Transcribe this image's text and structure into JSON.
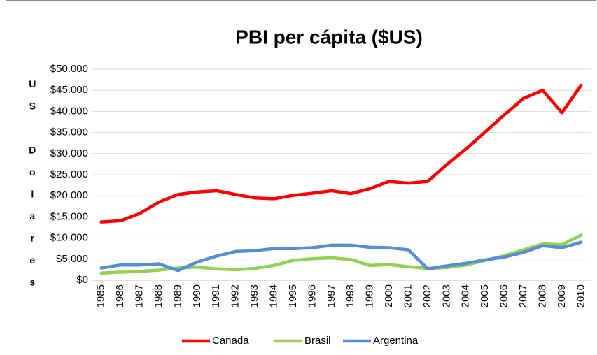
{
  "chart_data": {
    "type": "line",
    "title": "PBI per cápita ($US)",
    "ylabel": "US Dolares",
    "categories": [
      "1985",
      "1986",
      "1987",
      "1988",
      "1989",
      "1990",
      "1991",
      "1992",
      "1993",
      "1994",
      "1995",
      "1996",
      "1997",
      "1998",
      "1999",
      "2000",
      "2001",
      "2002",
      "2003",
      "2004",
      "2005",
      "2006",
      "2007",
      "2008",
      "2009",
      "2010"
    ],
    "series": [
      {
        "name": "Canada",
        "color": "#ff0000",
        "values": [
          13800,
          14100,
          15800,
          18500,
          20300,
          20900,
          21200,
          20300,
          19500,
          19300,
          20100,
          20600,
          21200,
          20500,
          21700,
          23400,
          23000,
          23400,
          27400,
          31100,
          35100,
          39200,
          43100,
          45000,
          39700,
          46200
        ]
      },
      {
        "name": "Brasil",
        "color": "#92d050",
        "values": [
          1700,
          1900,
          2100,
          2400,
          2900,
          3100,
          2700,
          2500,
          2800,
          3500,
          4700,
          5100,
          5300,
          4900,
          3500,
          3700,
          3200,
          2800,
          3000,
          3600,
          4700,
          5800,
          7200,
          8600,
          8400,
          10700
        ]
      },
      {
        "name": "Argentina",
        "color": "#558ed5",
        "values": [
          2900,
          3600,
          3600,
          3900,
          2300,
          4300,
          5700,
          6800,
          7000,
          7500,
          7500,
          7700,
          8300,
          8300,
          7800,
          7700,
          7200,
          2700,
          3400,
          4000,
          4800,
          5500,
          6600,
          8200,
          7700,
          9000
        ]
      }
    ],
    "ylim": [
      0,
      50000
    ],
    "yticks": [
      {
        "value": 0,
        "label": "$0"
      },
      {
        "value": 5000,
        "label": "$5.000"
      },
      {
        "value": 10000,
        "label": "$10.000"
      },
      {
        "value": 15000,
        "label": "$15.000"
      },
      {
        "value": 20000,
        "label": "$20.000"
      },
      {
        "value": 25000,
        "label": "$25.000"
      },
      {
        "value": 30000,
        "label": "$30.000"
      },
      {
        "value": 35000,
        "label": "$35.000"
      },
      {
        "value": 40000,
        "label": "$40.000"
      },
      {
        "value": 45000,
        "label": "$45.000"
      },
      {
        "value": 50000,
        "label": "$50.000"
      }
    ],
    "grid": true,
    "legend": "bottom"
  }
}
